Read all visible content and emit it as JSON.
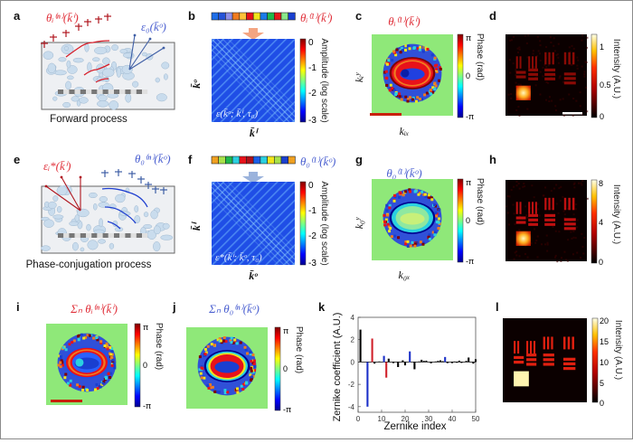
{
  "figure": {
    "panel_letters": [
      "a",
      "b",
      "c",
      "d",
      "e",
      "f",
      "g",
      "h",
      "i",
      "j",
      "k",
      "l"
    ],
    "colors": {
      "red_label": "#e0303a",
      "blue_label": "#4a5fd0",
      "phase_bg": "#8fe879",
      "medium_fill": "#eef0f3",
      "scatterer_fill": "#c9dced",
      "arrow_red": "#b0161f",
      "arrow_blue": "#3f5fa6"
    }
  },
  "panel_a": {
    "title_left": "θᵢ⁽ⁿ⁾(k̄ⁱ)",
    "title_right": "ε₀(k̄ᵒ)",
    "caption": "Forward process"
  },
  "panel_b": {
    "strip_label": "θᵢ⁽¹⁾(k̄ⁱ)",
    "strip_colors": [
      "#1e6ee8",
      "#2553d8",
      "#8f8fe8",
      "#f07b20",
      "#ffc23a",
      "#e8121a",
      "#f2e51a",
      "#1a7be8",
      "#20b84b",
      "#e51a1a",
      "#8ae88a",
      "#1a3fd0"
    ],
    "matrix_label": "ε(k̄ᵒ; k̄ⁱ, τ₀)",
    "ylabel": "k̄ᵒ",
    "xlabel": "k̄ⁱ",
    "colorbar": {
      "label": "Amplitude (log scale)",
      "ticks": [
        "0",
        "-1",
        "-2",
        "-3"
      ],
      "range": [
        -3,
        0
      ]
    }
  },
  "panel_c": {
    "title": "θᵢ⁽¹⁾(k̄ⁱ)",
    "ylabel": "kᵢʸ",
    "xlabel": "kᵢₓ",
    "colorbar": {
      "label": "Phase (rad)",
      "ticks": [
        "π",
        "0",
        "-π"
      ]
    }
  },
  "panel_d": {
    "colorbar": {
      "label": "Intensity (A.U.)",
      "ticks": [
        "1",
        "0.5",
        "0"
      ],
      "range": [
        0,
        1.1
      ]
    }
  },
  "panel_e": {
    "title_left": "εᵢ*(k̄ⁱ)",
    "title_right": "θ₀⁽ⁿ⁾(k̄ᵒ)",
    "caption": "Phase-conjugation process"
  },
  "panel_f": {
    "strip_label": "θ₀⁽¹⁾(k̄ᵒ)",
    "strip_colors": [
      "#f0a020",
      "#a8e24a",
      "#20b84b",
      "#2ad0e0",
      "#e8121a",
      "#b0101a",
      "#1a5fe8",
      "#2ad0e0",
      "#f2e51a",
      "#a8e24a",
      "#1a3fd0",
      "#f0a020"
    ],
    "matrix_label": "ε*(k̄ⁱ; k̄ᵒ, τ₀)",
    "ylabel": "k̄ⁱ",
    "xlabel": "k̄ᵒ",
    "colorbar": {
      "label": "Amplitude (log scale)",
      "ticks": [
        "0",
        "-1",
        "-2",
        "-3"
      ],
      "range": [
        -3,
        0
      ]
    }
  },
  "panel_g": {
    "title": "θ₀⁽¹⁾(k̄ᵒ)",
    "ylabel": "k₀ʸ",
    "xlabel": "k₀ₓ",
    "colorbar": {
      "label": "Phase (rad)",
      "ticks": [
        "π",
        "0",
        "-π"
      ]
    }
  },
  "panel_h": {
    "colorbar": {
      "label": "Intensity (A.U.)",
      "ticks": [
        "8",
        "4",
        "0"
      ],
      "range": [
        0,
        8
      ]
    }
  },
  "panel_i": {
    "title": "Σₙ θᵢ⁽ⁿ⁾(k̄ⁱ)",
    "colorbar": {
      "label": "Phase (rad)",
      "ticks": [
        "π",
        "0",
        "-π"
      ]
    }
  },
  "panel_j": {
    "title": "Σₙ θ₀⁽ⁿ⁾(k̄ᵒ)",
    "colorbar": {
      "label": "Phase (rad)",
      "ticks": [
        "π",
        "0",
        "-π"
      ]
    }
  },
  "panel_l": {
    "colorbar": {
      "label": "Intensity (A.U.)",
      "ticks": [
        "20",
        "15",
        "10",
        "5",
        "0"
      ],
      "range": [
        0,
        20
      ]
    }
  },
  "chart_data": {
    "type": "bar",
    "title": "",
    "xlabel": "Zernike index",
    "ylabel": "Zernike coefficient (A.U.)",
    "xlim": [
      0,
      50
    ],
    "ylim": [
      -4.5,
      4
    ],
    "xticks": [
      0,
      10,
      20,
      30,
      40,
      50
    ],
    "yticks": [
      -4,
      -2,
      0,
      2,
      4
    ],
    "grid": false,
    "series": [
      {
        "name": "black",
        "color": "#000000",
        "x": [
          1,
          7,
          9,
          13,
          15,
          17,
          19,
          20,
          24,
          26,
          27,
          28,
          29,
          31,
          33,
          34,
          35,
          36,
          38,
          40,
          41,
          42,
          43,
          44,
          46,
          47,
          49,
          50
        ],
        "values": [
          2.9,
          -0.15,
          0.05,
          0.3,
          -0.1,
          -0.45,
          0.15,
          -0.3,
          -0.65,
          0.05,
          0.2,
          0.1,
          0.12,
          -0.12,
          0.05,
          0.1,
          0.15,
          0.08,
          -0.1,
          -0.1,
          0.05,
          -0.05,
          0.12,
          -0.08,
          0.1,
          0.4,
          -0.15,
          0.25
        ]
      },
      {
        "name": "blue",
        "color": "#1a2fc8",
        "x": [
          4,
          11,
          22,
          37
        ],
        "values": [
          -4.0,
          0.55,
          0.95,
          0.45
        ]
      },
      {
        "name": "red",
        "color": "#d0202a",
        "x": [
          6,
          12
        ],
        "values": [
          2.1,
          -1.4
        ]
      }
    ]
  }
}
